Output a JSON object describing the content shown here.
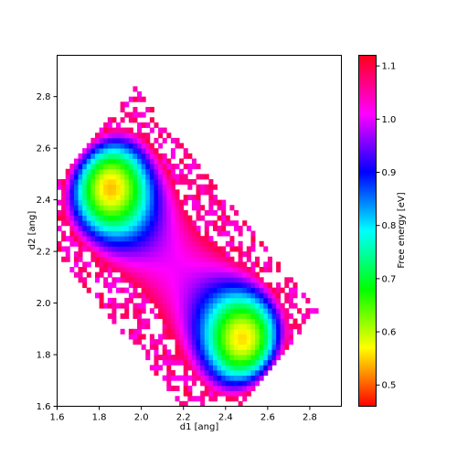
{
  "chart_data": {
    "type": "heatmap",
    "xlabel": "d1 [ang]",
    "ylabel": "d2 [ang]",
    "colorbar_label": "Free energy [eV]",
    "xlim": [
      1.6,
      2.95
    ],
    "ylim": [
      1.6,
      2.96
    ],
    "x_ticks": [
      "1.6",
      "1.8",
      "2.0",
      "2.2",
      "2.4",
      "2.6",
      "2.8"
    ],
    "y_ticks": [
      "1.6",
      "1.8",
      "2.0",
      "2.2",
      "2.4",
      "2.6",
      "2.8"
    ],
    "colorbar_range": [
      0.46,
      1.12
    ],
    "colorbar_ticks": [
      "0.5",
      "0.6",
      "0.7",
      "0.8",
      "0.9",
      "1.0",
      "1.1"
    ],
    "colormap": "hsv (red low → magenta high)",
    "bin_size": 0.02,
    "grid": false,
    "minima": [
      {
        "d1": 1.84,
        "d2": 2.46,
        "energy": 0.46
      },
      {
        "d1": 2.5,
        "d2": 1.85,
        "energy": 0.46
      }
    ]
  }
}
